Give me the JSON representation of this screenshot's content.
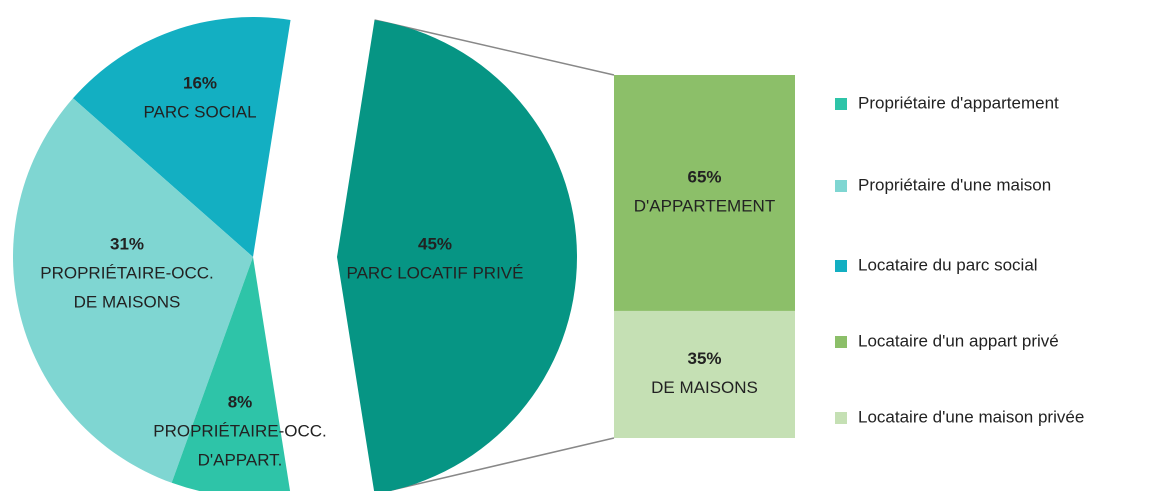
{
  "chart_data": {
    "type": "bar-of-pie",
    "pie": {
      "values": [
        16,
        31,
        8,
        45
      ],
      "value_labels": [
        "16%",
        "31%",
        "8%",
        "45%"
      ],
      "labels": [
        [
          "PARC SOCIAL"
        ],
        [
          "PROPRIÉTAIRE-OCC.",
          "DE MAISONS"
        ],
        [
          "PROPRIÉTAIRE-OCC.",
          "D'APPART."
        ],
        [
          "PARC LOCATIF PRIVÉ"
        ]
      ],
      "colors": [
        "#13afc2",
        "#7fd6d2",
        "#2ec4a8",
        "#069584"
      ]
    },
    "bar": {
      "values": [
        65,
        35
      ],
      "value_labels": [
        "65%",
        "35%"
      ],
      "labels": [
        [
          "D'APPARTEMENT"
        ],
        [
          "DE MAISONS"
        ]
      ],
      "colors": [
        "#8cbf69",
        "#c5e0b4"
      ]
    },
    "legend": [
      "Propriétaire d'appartement",
      "Propriétaire d'une maison",
      "Locataire du parc social",
      "Locataire d'un appart privé",
      "Locataire d'une maison privée"
    ]
  }
}
